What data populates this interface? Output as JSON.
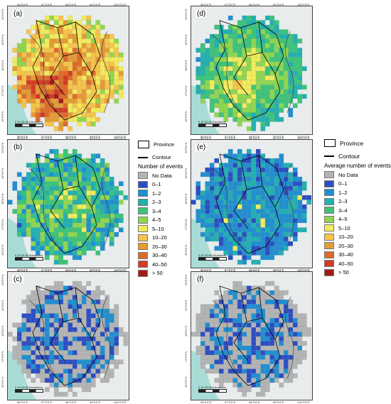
{
  "panels": [
    {
      "label": "(a)",
      "scheme": "hot"
    },
    {
      "label": "(b)",
      "scheme": "mid"
    },
    {
      "label": "(c)",
      "scheme": "low"
    },
    {
      "label": "(d)",
      "scheme": "warm"
    },
    {
      "label": "(e)",
      "scheme": "cool"
    },
    {
      "label": "(f)",
      "scheme": "low"
    }
  ],
  "axis_ticks": {
    "lon": [
      "96°0'0\"E",
      "97°0'0\"E",
      "98°0'0\"E",
      "99°0'0\"E",
      "100°0'0\"E"
    ],
    "lat": [
      "20°0'0\"N",
      "19°0'0\"N",
      "18°0'0\"N",
      "17°0'0\"N",
      "16°0'0\"N"
    ]
  },
  "scale_bar": {
    "labels": "0  15  30      60 Kilometers"
  },
  "legend_left": {
    "province": "Province",
    "contour": "Contour",
    "title": "Number of events",
    "items": [
      {
        "label": "No Data",
        "color": "#b4b4b4"
      },
      {
        "label": "0–1",
        "color": "#2b4ec3"
      },
      {
        "label": "1–2",
        "color": "#1f8fd1"
      },
      {
        "label": "2–3",
        "color": "#23b0b0"
      },
      {
        "label": "3–4",
        "color": "#3cc47a"
      },
      {
        "label": "4–5",
        "color": "#8fd650"
      },
      {
        "label": "5–10",
        "color": "#f2ec5c"
      },
      {
        "label": "10–20",
        "color": "#f6c44b"
      },
      {
        "label": "20–30",
        "color": "#e59b33"
      },
      {
        "label": "30–40",
        "color": "#dd6a2a"
      },
      {
        "label": "40–50",
        "color": "#d33b22"
      },
      {
        "label": "> 50",
        "color": "#a31a16"
      }
    ]
  },
  "legend_right": {
    "province": "Province",
    "contour": "Contour",
    "title": "Average number of events",
    "items": [
      {
        "label": "No Data",
        "color": "#b4b4b4"
      },
      {
        "label": "0–1",
        "color": "#2b4ec3"
      },
      {
        "label": "1–2",
        "color": "#1f8fd1"
      },
      {
        "label": "2–3",
        "color": "#23b0b0"
      },
      {
        "label": "3–4",
        "color": "#3cc47a"
      },
      {
        "label": "4–5",
        "color": "#8fd650"
      },
      {
        "label": "5–10",
        "color": "#f2ec5c"
      },
      {
        "label": "10–20",
        "color": "#f6c44b"
      },
      {
        "label": "20–30",
        "color": "#e59b33"
      },
      {
        "label": "30–40",
        "color": "#dd6a2a"
      },
      {
        "label": "40–50",
        "color": "#d33b22"
      },
      {
        "label": "> 50",
        "color": "#a31a16"
      }
    ]
  }
}
